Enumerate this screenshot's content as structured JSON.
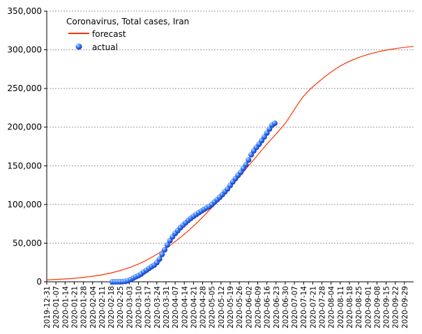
{
  "chart_data": {
    "type": "line",
    "title": "Coronavirus, Total cases, Iran",
    "xlabel": "",
    "ylabel": "",
    "ylim": [
      0,
      350000
    ],
    "xlim": [
      "2019-12-31",
      "2020-10-06"
    ],
    "yticks": [
      "0",
      "50,000",
      "100,000",
      "150,000",
      "200,000",
      "250,000",
      "300,000",
      "350,000"
    ],
    "xticks": [
      "2019-12-31",
      "2020-01-07",
      "2020-01-14",
      "2020-01-21",
      "2020-01-28",
      "2020-02-04",
      "2020-02-11",
      "2020-02-18",
      "2020-02-25",
      "2020-03-03",
      "2020-03-10",
      "2020-03-17",
      "2020-03-24",
      "2020-03-31",
      "2020-04-07",
      "2020-04-14",
      "2020-04-21",
      "2020-04-28",
      "2020-05-05",
      "2020-05-12",
      "2020-05-19",
      "2020-05-26",
      "2020-06-02",
      "2020-06-09",
      "2020-06-16",
      "2020-06-23",
      "2020-06-30",
      "2020-07-07",
      "2020-07-14",
      "2020-07-21",
      "2020-07-28",
      "2020-08-04",
      "2020-08-11",
      "2020-08-18",
      "2020-08-25",
      "2020-09-01",
      "2020-09-08",
      "2020-09-15",
      "2020-09-22",
      "2020-09-29"
    ],
    "grid": true,
    "legend": "top-left",
    "series": [
      {
        "name": "forecast",
        "type": "line",
        "color": "#ff3300",
        "points": [
          [
            "2019-12-31",
            2500
          ],
          [
            "2020-01-21",
            4500
          ],
          [
            "2020-02-11",
            9000
          ],
          [
            "2020-02-25",
            14500
          ],
          [
            "2020-03-10",
            23000
          ],
          [
            "2020-03-24",
            35500
          ],
          [
            "2020-04-07",
            52000
          ],
          [
            "2020-04-21",
            72000
          ],
          [
            "2020-05-05",
            96000
          ],
          [
            "2020-05-19",
            122000
          ],
          [
            "2020-06-02",
            150000
          ],
          [
            "2020-06-16",
            178000
          ],
          [
            "2020-06-30",
            205000
          ],
          [
            "2020-07-14",
            240000
          ],
          [
            "2020-07-28",
            262000
          ],
          [
            "2020-08-11",
            279000
          ],
          [
            "2020-08-25",
            290000
          ],
          [
            "2020-09-08",
            297000
          ],
          [
            "2020-09-22",
            301500
          ],
          [
            "2020-10-06",
            304500
          ]
        ]
      },
      {
        "name": "actual",
        "type": "scatter",
        "color": "#2255ee",
        "points": [
          [
            "2020-02-19",
            2
          ],
          [
            "2020-02-21",
            18
          ],
          [
            "2020-02-23",
            43
          ],
          [
            "2020-02-25",
            95
          ],
          [
            "2020-02-27",
            245
          ],
          [
            "2020-02-29",
            593
          ],
          [
            "2020-03-02",
            1501
          ],
          [
            "2020-03-04",
            2922
          ],
          [
            "2020-03-06",
            4747
          ],
          [
            "2020-03-08",
            6566
          ],
          [
            "2020-03-10",
            8042
          ],
          [
            "2020-03-12",
            10075
          ],
          [
            "2020-03-14",
            12729
          ],
          [
            "2020-03-16",
            14991
          ],
          [
            "2020-03-18",
            17361
          ],
          [
            "2020-03-20",
            19644
          ],
          [
            "2020-03-22",
            21638
          ],
          [
            "2020-03-24",
            24811
          ],
          [
            "2020-03-26",
            29406
          ],
          [
            "2020-03-28",
            35408
          ],
          [
            "2020-03-30",
            41495
          ],
          [
            "2020-04-01",
            47593
          ],
          [
            "2020-04-03",
            53183
          ],
          [
            "2020-04-05",
            58226
          ],
          [
            "2020-04-07",
            62589
          ],
          [
            "2020-04-09",
            66220
          ],
          [
            "2020-04-11",
            70029
          ],
          [
            "2020-04-13",
            73303
          ],
          [
            "2020-04-15",
            76389
          ],
          [
            "2020-04-17",
            79494
          ],
          [
            "2020-04-19",
            82211
          ],
          [
            "2020-04-21",
            84802
          ],
          [
            "2020-04-23",
            87026
          ],
          [
            "2020-04-25",
            89328
          ],
          [
            "2020-04-27",
            91472
          ],
          [
            "2020-04-29",
            93657
          ],
          [
            "2020-05-01",
            95646
          ],
          [
            "2020-05-03",
            97424
          ],
          [
            "2020-05-05",
            99970
          ],
          [
            "2020-05-07",
            103135
          ],
          [
            "2020-05-09",
            106220
          ],
          [
            "2020-05-11",
            109286
          ],
          [
            "2020-05-13",
            112725
          ],
          [
            "2020-05-15",
            116635
          ],
          [
            "2020-05-17",
            120198
          ],
          [
            "2020-05-19",
            124603
          ],
          [
            "2020-05-21",
            129341
          ],
          [
            "2020-05-23",
            133521
          ],
          [
            "2020-05-25",
            137724
          ],
          [
            "2020-05-27",
            141591
          ],
          [
            "2020-05-29",
            146668
          ],
          [
            "2020-05-31",
            151466
          ],
          [
            "2020-06-02",
            157562
          ],
          [
            "2020-06-04",
            164270
          ],
          [
            "2020-06-06",
            169425
          ],
          [
            "2020-06-08",
            173832
          ],
          [
            "2020-06-10",
            177938
          ],
          [
            "2020-06-12",
            182525
          ],
          [
            "2020-06-14",
            187427
          ],
          [
            "2020-06-16",
            192439
          ],
          [
            "2020-06-18",
            197647
          ],
          [
            "2020-06-20",
            202584
          ],
          [
            "2020-06-22",
            205000
          ]
        ]
      }
    ]
  }
}
